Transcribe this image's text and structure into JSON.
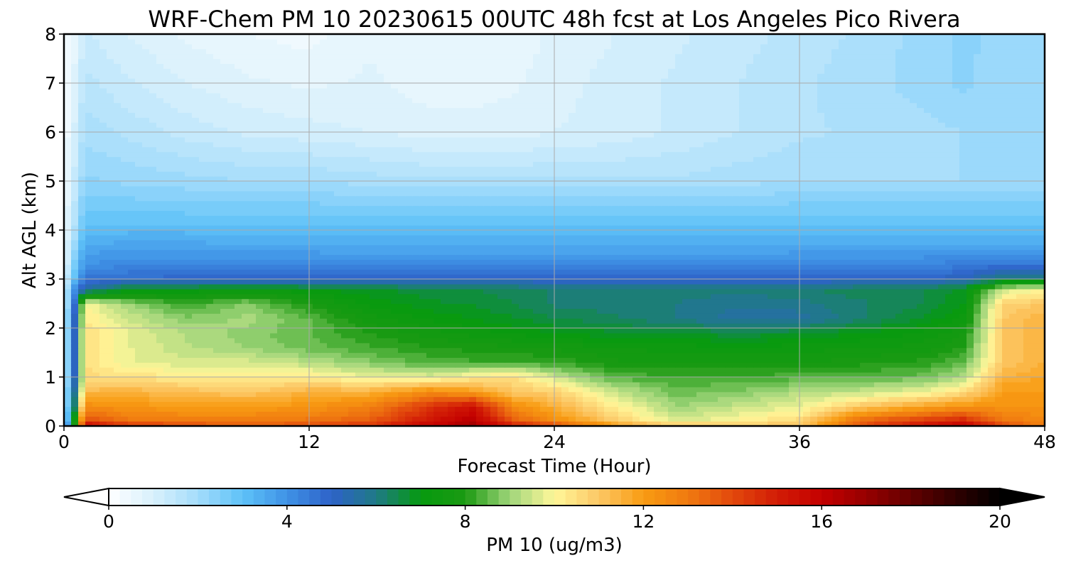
{
  "chart_data": {
    "type": "heatmap",
    "title": "WRF-Chem PM 10  20230615 00UTC 48h fcst at Los Angeles Pico Rivera",
    "xlabel": "Forecast Time (Hour)",
    "ylabel": "Alt AGL (km)",
    "xlim": [
      0,
      48
    ],
    "ylim": [
      0,
      8
    ],
    "xticks": [
      0,
      12,
      24,
      36,
      48
    ],
    "yticks": [
      0,
      1,
      2,
      3,
      4,
      5,
      6,
      7,
      8
    ],
    "grid": true,
    "colorbar": {
      "label": "PM 10  (ug/m3)",
      "range": [
        0,
        20
      ],
      "ticks": [
        0,
        4,
        8,
        12,
        16,
        20
      ],
      "extend": "both",
      "stops": [
        {
          "v": 0,
          "color": "#ffffff"
        },
        {
          "v": 1,
          "color": "#d8f0fc"
        },
        {
          "v": 2,
          "color": "#a4dcfb"
        },
        {
          "v": 3,
          "color": "#5ec2f8"
        },
        {
          "v": 4,
          "color": "#3f92e6"
        },
        {
          "v": 5,
          "color": "#2e62c8"
        },
        {
          "v": 6,
          "color": "#1f7a86"
        },
        {
          "v": 7,
          "color": "#069a0f"
        },
        {
          "v": 8,
          "color": "#1b9a12"
        },
        {
          "v": 9,
          "color": "#9fd57a"
        },
        {
          "v": 10,
          "color": "#fff79a"
        },
        {
          "v": 11,
          "color": "#fcc765"
        },
        {
          "v": 12,
          "color": "#f89b12"
        },
        {
          "v": 13,
          "color": "#f07a10"
        },
        {
          "v": 14,
          "color": "#e2480c"
        },
        {
          "v": 15,
          "color": "#d21d06"
        },
        {
          "v": 16,
          "color": "#c40000"
        },
        {
          "v": 17,
          "color": "#960000"
        },
        {
          "v": 18,
          "color": "#620000"
        },
        {
          "v": 19,
          "color": "#2f0000"
        },
        {
          "v": 20,
          "color": "#000000"
        }
      ]
    },
    "x": [
      0,
      0.5,
      1,
      3,
      6,
      9,
      12,
      15,
      18,
      20,
      22,
      24,
      27,
      30,
      33,
      36,
      39,
      42,
      44,
      46,
      48
    ],
    "y": [
      0,
      0.15,
      0.4,
      0.7,
      1.0,
      1.3,
      1.6,
      1.9,
      2.2,
      2.5,
      2.8,
      3.0,
      3.3,
      3.7,
      4.2,
      5,
      6,
      7,
      8
    ],
    "z": [
      [
        1.5,
        8,
        15.8,
        14.5,
        14,
        13.5,
        14,
        14.5,
        16,
        16.8,
        15,
        14,
        12,
        11,
        11,
        11,
        14,
        15.5,
        16.3,
        14,
        12.8
      ],
      [
        1.2,
        7,
        13.8,
        13,
        12.8,
        12.8,
        13,
        13.5,
        15.2,
        16.2,
        13.5,
        12.3,
        10.8,
        9.5,
        10,
        10.5,
        13,
        14,
        14.5,
        13,
        12.5
      ],
      [
        1,
        6,
        12.5,
        12.2,
        12,
        12,
        12.2,
        12.8,
        14.5,
        15.5,
        12.5,
        11.5,
        10.2,
        9,
        9.4,
        9.8,
        11,
        11.8,
        12.2,
        12.3,
        12.2
      ],
      [
        1,
        5.5,
        11.3,
        11.5,
        11.2,
        11,
        11.5,
        11.5,
        12.5,
        12,
        11,
        10.8,
        9.4,
        8.6,
        8.8,
        9.2,
        9.4,
        9.8,
        10.5,
        12,
        12
      ],
      [
        1,
        5,
        10.6,
        10.5,
        10.2,
        10.2,
        10.2,
        9.8,
        9.7,
        10.2,
        10.5,
        9.5,
        8.4,
        8.3,
        8.3,
        8.4,
        8.5,
        8.6,
        9.2,
        11.5,
        11.8
      ],
      [
        1,
        5,
        10.5,
        9.8,
        9.6,
        9.6,
        9.3,
        8.8,
        8.4,
        8.3,
        8.3,
        8.2,
        7.8,
        7.7,
        7.7,
        7.7,
        7.9,
        8.1,
        8.5,
        11,
        11.5
      ],
      [
        1,
        5,
        10.6,
        9.8,
        9.3,
        9,
        8.6,
        8.3,
        8,
        7.9,
        7.8,
        7.7,
        7.5,
        7.4,
        7.3,
        7.4,
        7.5,
        7.6,
        8,
        11,
        11.5
      ],
      [
        1,
        5,
        10.5,
        9.8,
        9.2,
        8.9,
        8.5,
        8,
        7.6,
        7.4,
        7.2,
        7,
        6.8,
        6.7,
        6.6,
        6.7,
        7,
        7.3,
        7.7,
        11,
        11.5
      ],
      [
        1,
        5,
        10.3,
        9.5,
        8.8,
        9.1,
        8.5,
        7.6,
        7.2,
        7,
        6.8,
        6.5,
        6.3,
        6,
        5.6,
        5.6,
        6.2,
        6.8,
        7.3,
        11,
        11.5
      ],
      [
        1,
        4.5,
        10,
        9,
        8.2,
        8.8,
        7.9,
        7.2,
        6.8,
        6.7,
        6.5,
        6.2,
        6.1,
        6,
        5.8,
        5.9,
        6.2,
        6.5,
        7,
        10.8,
        11
      ],
      [
        1,
        4,
        5.5,
        6.8,
        7,
        7.2,
        7,
        6.8,
        6.6,
        6.5,
        6.4,
        6.2,
        6.2,
        6.1,
        6.1,
        6.2,
        6.4,
        6.5,
        6.8,
        9.5,
        10
      ],
      [
        0.8,
        3,
        4.6,
        4.8,
        4.9,
        4.9,
        4.9,
        4.9,
        4.9,
        4.9,
        4.9,
        4.9,
        4.9,
        4.9,
        4.9,
        4.9,
        4.9,
        5,
        5.2,
        6.2,
        6
      ],
      [
        0.6,
        2.5,
        4,
        4.2,
        4.2,
        4.2,
        4.2,
        4.2,
        4.2,
        4.2,
        4.2,
        4.2,
        4.2,
        4.2,
        4.2,
        4.2,
        4.2,
        4.3,
        4.4,
        4.6,
        4.6
      ],
      [
        0.5,
        2,
        3.5,
        3.6,
        3.6,
        3.5,
        3.5,
        3.4,
        3.4,
        3.4,
        3.4,
        3.4,
        3.4,
        3.4,
        3.4,
        3.5,
        3.5,
        3.5,
        3.5,
        3.5,
        3.5
      ],
      [
        0.4,
        1.6,
        2.9,
        2.9,
        2.9,
        2.9,
        2.9,
        2.9,
        2.9,
        2.9,
        2.9,
        2.9,
        2.9,
        2.9,
        2.9,
        2.9,
        2.9,
        2.9,
        2.9,
        2.9,
        2.9
      ],
      [
        0.3,
        1.3,
        2.3,
        2.2,
        2.1,
        2,
        2,
        1.9,
        1.8,
        1.8,
        1.8,
        1.8,
        1.8,
        1.8,
        1.9,
        2,
        2,
        2,
        2,
        2,
        2
      ],
      [
        0.2,
        1,
        1.9,
        1.7,
        1.4,
        1.2,
        1.1,
        1,
        0.9,
        0.9,
        0.9,
        1,
        1.1,
        1.3,
        1.5,
        1.7,
        1.8,
        1.9,
        2,
        2,
        2
      ],
      [
        0.1,
        0.8,
        1.6,
        1.3,
        1,
        0.8,
        0.7,
        0.8,
        0.6,
        0.6,
        0.7,
        0.9,
        1.1,
        1.3,
        1.5,
        1.7,
        1.9,
        2.1,
        2.3,
        2.1,
        2
      ],
      [
        0.1,
        0.6,
        1.3,
        1,
        0.7,
        0.5,
        0.4,
        0.7,
        0.5,
        0.5,
        0.6,
        0.8,
        1,
        1.2,
        1.4,
        1.6,
        1.8,
        2.1,
        2.3,
        2.2,
        2
      ]
    ]
  }
}
